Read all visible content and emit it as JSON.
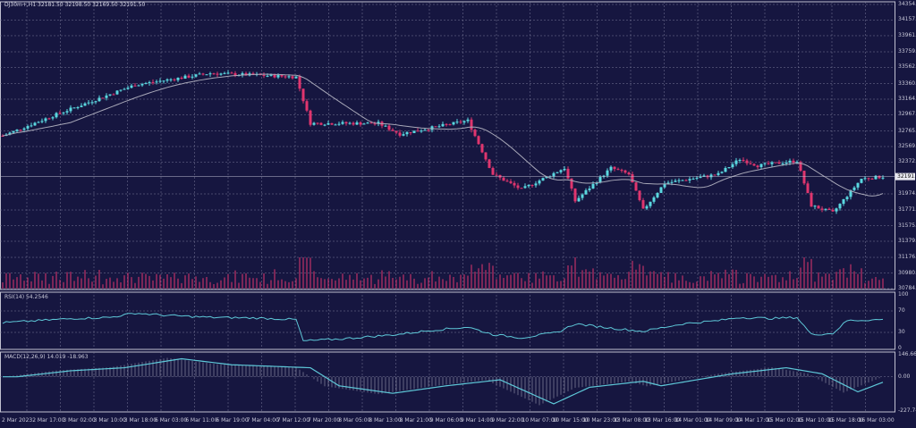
{
  "header": {
    "title": "DJ30m+,H1  32181.50 32198.50 32169.50 32191.50"
  },
  "rsi_label": "RSI(14) 54.2546",
  "macd_label": "MACD(12,26,9) 14.019 -18.963",
  "colors": {
    "background": "#161640",
    "bull": "#5ad8e0",
    "bear": "#e0356e",
    "ma": "#a8a8b8",
    "grid": "#7a7a9a",
    "indicator": "#5ec8d8"
  },
  "chart_data": [
    {
      "type": "candlestick",
      "title": "DJ30m+,H1",
      "ylim": [
        30784.25,
        34354.25
      ],
      "grid": true,
      "price_ticks": [
        "34354.25",
        "34157.90",
        "33961.55",
        "33759.25",
        "33562.90",
        "33360.60",
        "33164.25",
        "32967.90",
        "32765.60",
        "32569.25",
        "32372.90",
        "32191.50",
        "31974.25",
        "31771.95",
        "31575.60",
        "31379.25",
        "31176.95",
        "30980.60",
        "30784.25"
      ],
      "current_price": "32191.50",
      "x_ticks": [
        "2 Mar 2023",
        "2 Mar 17:00",
        "3 Mar 02:00",
        "3 Mar 10:00",
        "3 Mar 18:00",
        "6 Mar 03:00",
        "6 Mar 11:00",
        "6 Mar 19:00",
        "7 Mar 04:00",
        "7 Mar 12:00",
        "7 Mar 20:00",
        "8 Mar 05:00",
        "8 Mar 13:00",
        "8 Mar 21:00",
        "9 Mar 06:00",
        "9 Mar 14:00",
        "9 Mar 22:00",
        "10 Mar 07:00",
        "10 Mar 15:00",
        "10 Mar 23:00",
        "13 Mar 08:00",
        "13 Mar 16:00",
        "14 Mar 01:00",
        "14 Mar 09:00",
        "14 Mar 17:00",
        "15 Mar 02:00",
        "15 Mar 10:00",
        "15 Mar 18:00",
        "16 Mar 03:00"
      ],
      "close_keypoints": [
        [
          0,
          32704
        ],
        [
          15,
          32973
        ],
        [
          37,
          33344
        ],
        [
          58,
          33490
        ],
        [
          82,
          33445
        ],
        [
          86,
          32861
        ],
        [
          105,
          32861
        ],
        [
          111,
          32726
        ],
        [
          130,
          32895
        ],
        [
          137,
          32221
        ],
        [
          145,
          32030
        ],
        [
          157,
          32300
        ],
        [
          160,
          31884
        ],
        [
          170,
          32300
        ],
        [
          175,
          32221
        ],
        [
          179,
          31772
        ],
        [
          185,
          32109
        ],
        [
          200,
          32221
        ],
        [
          206,
          32412
        ],
        [
          211,
          32330
        ],
        [
          222,
          32390
        ],
        [
          226,
          31828
        ],
        [
          232,
          31738
        ],
        [
          240,
          32165
        ],
        [
          246,
          32191
        ]
      ]
    },
    {
      "type": "line",
      "title": "RSI(14) 54.2546",
      "ylim": [
        0,
        100
      ],
      "y_ticks": [
        "100",
        "70",
        "30",
        "0"
      ],
      "keypoints": [
        [
          0,
          48
        ],
        [
          10,
          52
        ],
        [
          20,
          56
        ],
        [
          30,
          58
        ],
        [
          37,
          66
        ],
        [
          45,
          62
        ],
        [
          58,
          58
        ],
        [
          70,
          57
        ],
        [
          82,
          54
        ],
        [
          84,
          14
        ],
        [
          95,
          18
        ],
        [
          110,
          26
        ],
        [
          120,
          34
        ],
        [
          130,
          40
        ],
        [
          137,
          26
        ],
        [
          145,
          20
        ],
        [
          155,
          30
        ],
        [
          160,
          46
        ],
        [
          170,
          38
        ],
        [
          179,
          32
        ],
        [
          190,
          46
        ],
        [
          200,
          52
        ],
        [
          206,
          58
        ],
        [
          215,
          56
        ],
        [
          222,
          58
        ],
        [
          226,
          26
        ],
        [
          232,
          28
        ],
        [
          236,
          52
        ],
        [
          246,
          54
        ]
      ]
    },
    {
      "type": "line",
      "title": "MACD(12,26,9) 14.019 -18.963",
      "ylim": [
        -227.749,
        146.666
      ],
      "y_ticks": [
        "146.666",
        "0.00",
        "-227.749"
      ],
      "keypoints": [
        [
          0,
          0
        ],
        [
          15,
          40
        ],
        [
          30,
          60
        ],
        [
          46,
          120
        ],
        [
          60,
          80
        ],
        [
          82,
          60
        ],
        [
          90,
          -60
        ],
        [
          105,
          -110
        ],
        [
          120,
          -60
        ],
        [
          135,
          -20
        ],
        [
          150,
          -180
        ],
        [
          160,
          -70
        ],
        [
          175,
          -30
        ],
        [
          180,
          -60
        ],
        [
          200,
          20
        ],
        [
          215,
          60
        ],
        [
          225,
          20
        ],
        [
          235,
          -100
        ],
        [
          246,
          0
        ]
      ]
    }
  ]
}
